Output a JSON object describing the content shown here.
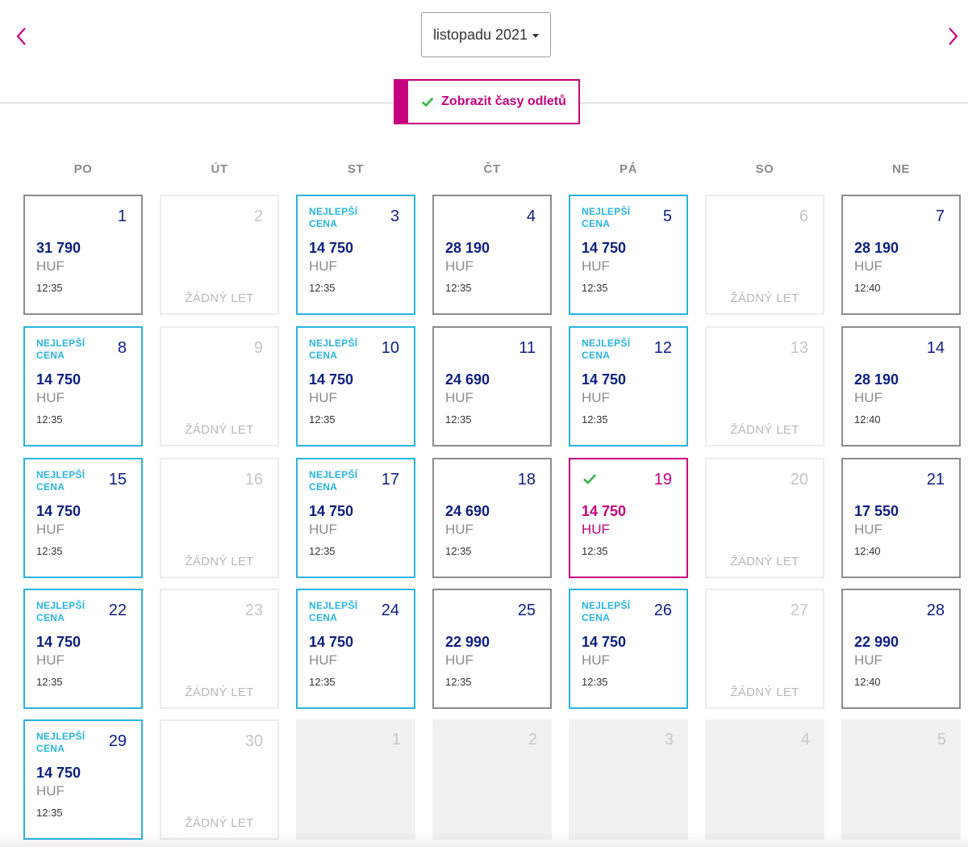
{
  "header": {
    "month_select": "listopadu 2021",
    "toggle_label": "Zobrazit časy odletů"
  },
  "colors": {
    "accent": "#c6007e",
    "best": "#2ab4e0",
    "price": "#0d1e80",
    "check": "#3bb54a"
  },
  "weekdays": [
    "PO",
    "ÚT",
    "ST",
    "ČT",
    "PÁ",
    "SO",
    "NE"
  ],
  "labels": {
    "best_line1": "NEJLEPŠÍ",
    "best_line2": "CENA",
    "no_flight": "ŽÁDNÝ LET",
    "currency": "HUF"
  },
  "days": [
    {
      "day": "1",
      "type": "normal",
      "price": "31 790",
      "time": "12:35"
    },
    {
      "day": "2",
      "type": "noflight"
    },
    {
      "day": "3",
      "type": "best",
      "price": "14 750",
      "time": "12:35"
    },
    {
      "day": "4",
      "type": "normal",
      "price": "28 190",
      "time": "12:35"
    },
    {
      "day": "5",
      "type": "best",
      "price": "14 750",
      "time": "12:35"
    },
    {
      "day": "6",
      "type": "noflight"
    },
    {
      "day": "7",
      "type": "normal",
      "price": "28 190",
      "time": "12:40"
    },
    {
      "day": "8",
      "type": "best",
      "price": "14 750",
      "time": "12:35"
    },
    {
      "day": "9",
      "type": "noflight"
    },
    {
      "day": "10",
      "type": "best",
      "price": "14 750",
      "time": "12:35"
    },
    {
      "day": "11",
      "type": "normal",
      "price": "24 690",
      "time": "12:35"
    },
    {
      "day": "12",
      "type": "best",
      "price": "14 750",
      "time": "12:35"
    },
    {
      "day": "13",
      "type": "noflight"
    },
    {
      "day": "14",
      "type": "normal",
      "price": "28 190",
      "time": "12:40"
    },
    {
      "day": "15",
      "type": "best",
      "price": "14 750",
      "time": "12:35"
    },
    {
      "day": "16",
      "type": "noflight"
    },
    {
      "day": "17",
      "type": "best",
      "price": "14 750",
      "time": "12:35"
    },
    {
      "day": "18",
      "type": "normal",
      "price": "24 690",
      "time": "12:35"
    },
    {
      "day": "19",
      "type": "selected",
      "price": "14 750",
      "time": "12:35"
    },
    {
      "day": "20",
      "type": "noflight"
    },
    {
      "day": "21",
      "type": "normal",
      "price": "17 550",
      "time": "12:40"
    },
    {
      "day": "22",
      "type": "best",
      "price": "14 750",
      "time": "12:35"
    },
    {
      "day": "23",
      "type": "noflight"
    },
    {
      "day": "24",
      "type": "best",
      "price": "14 750",
      "time": "12:35"
    },
    {
      "day": "25",
      "type": "normal",
      "price": "22 990",
      "time": "12:35"
    },
    {
      "day": "26",
      "type": "best",
      "price": "14 750",
      "time": "12:35"
    },
    {
      "day": "27",
      "type": "noflight"
    },
    {
      "day": "28",
      "type": "normal",
      "price": "22 990",
      "time": "12:40"
    },
    {
      "day": "29",
      "type": "best",
      "price": "14 750",
      "time": "12:35"
    },
    {
      "day": "30",
      "type": "noflight"
    },
    {
      "day": "1",
      "type": "other"
    },
    {
      "day": "2",
      "type": "other"
    },
    {
      "day": "3",
      "type": "other"
    },
    {
      "day": "4",
      "type": "other"
    },
    {
      "day": "5",
      "type": "other"
    }
  ]
}
